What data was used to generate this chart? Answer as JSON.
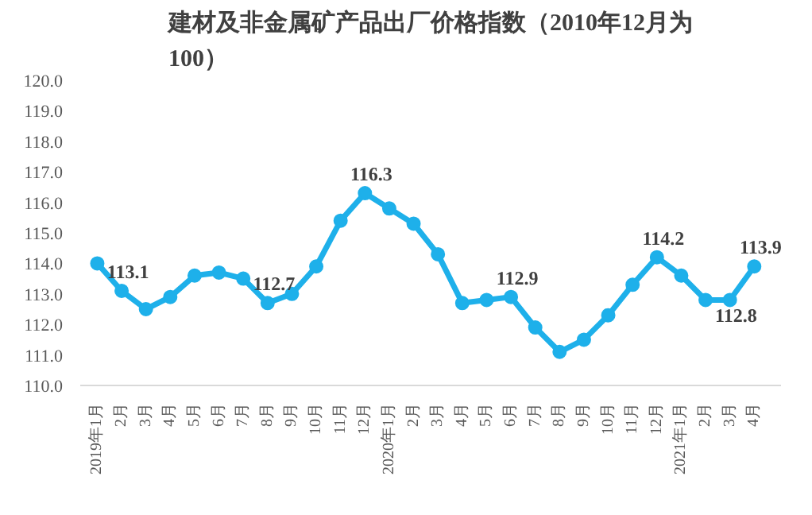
{
  "chart_data": {
    "type": "line",
    "title": "建材及非金属矿产品出厂价格指数（2010年12月为100）",
    "categories": [
      "2019年1月",
      "2月",
      "3月",
      "4月",
      "5月",
      "6月",
      "7月",
      "8月",
      "9月",
      "10月",
      "11月",
      "12月",
      "2020年1月",
      "2月",
      "3月",
      "4月",
      "5月",
      "6月",
      "7月",
      "8月",
      "9月",
      "10月",
      "11月",
      "12月",
      "2021年1月",
      "2月",
      "3月",
      "4月"
    ],
    "series": [
      {
        "color": "#1eb0ea",
        "values": [
          114.0,
          113.1,
          112.5,
          112.9,
          113.6,
          113.7,
          113.5,
          112.7,
          113.0,
          113.9,
          115.4,
          116.3,
          115.8,
          115.3,
          114.3,
          112.7,
          112.8,
          112.9,
          111.9,
          111.1,
          111.5,
          112.3,
          113.3,
          114.2,
          113.6,
          112.8,
          112.8,
          113.9
        ],
        "value_labels": [
          null,
          "113.1",
          null,
          null,
          null,
          null,
          null,
          "112.7",
          null,
          null,
          null,
          "116.3",
          null,
          null,
          null,
          null,
          null,
          "112.9",
          null,
          null,
          null,
          null,
          null,
          "114.2",
          null,
          "112.8",
          null,
          "113.9"
        ]
      }
    ],
    "ylim": [
      110,
      120
    ],
    "yticks": [
      {
        "value": 110,
        "label": "110.0"
      },
      {
        "value": 111,
        "label": "111.0"
      },
      {
        "value": 112,
        "label": "112.0"
      },
      {
        "value": 113,
        "label": "113.0"
      },
      {
        "value": 114,
        "label": "114.0"
      },
      {
        "value": 115,
        "label": "115.0"
      },
      {
        "value": 116,
        "label": "116.0"
      },
      {
        "value": 117,
        "label": "117.0"
      },
      {
        "value": 118,
        "label": "118.0"
      },
      {
        "value": 119,
        "label": "119.0"
      },
      {
        "value": 120,
        "label": "120.0"
      }
    ],
    "marker": "circle",
    "line_style": "solid",
    "grid": false
  }
}
